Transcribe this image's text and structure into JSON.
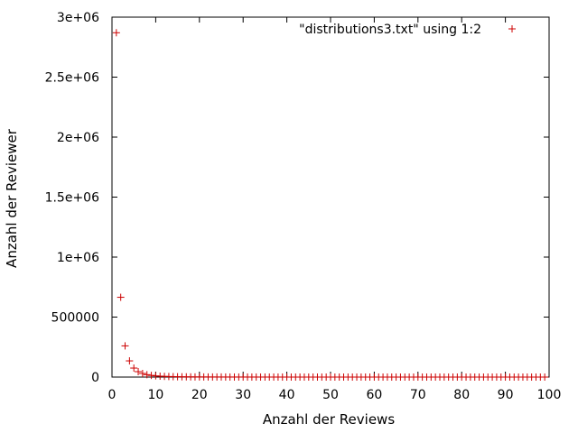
{
  "chart_data": {
    "type": "scatter",
    "xlabel": "Anzahl der Reviews",
    "ylabel": "Anzahl der Reviewer",
    "xlim": [
      0,
      100
    ],
    "ylim": [
      0,
      3000000
    ],
    "x_ticks": [
      0,
      10,
      20,
      30,
      40,
      50,
      60,
      70,
      80,
      90,
      100
    ],
    "x_tick_labels": [
      "0",
      "10",
      "20",
      "30",
      "40",
      "50",
      "60",
      "70",
      "80",
      "90",
      "100"
    ],
    "y_ticks": [
      0,
      500000,
      1000000,
      1500000,
      2000000,
      2500000,
      3000000
    ],
    "y_tick_labels": [
      "0",
      "500000",
      "1e+06",
      "1.5e+06",
      "2e+06",
      "2.5e+06",
      "3e+06"
    ],
    "legend_position": "top-right",
    "grid": false,
    "marker": "plus",
    "series": [
      {
        "name": "\"distributions3.txt\" using 1:2",
        "color": "#cc0000",
        "x": [
          1,
          2,
          3,
          4,
          5,
          6,
          7,
          8,
          9,
          10,
          11,
          12,
          13,
          14,
          15,
          16,
          17,
          18,
          19,
          20,
          21,
          22,
          23,
          24,
          25,
          26,
          27,
          28,
          29,
          30,
          31,
          32,
          33,
          34,
          35,
          36,
          37,
          38,
          39,
          40,
          41,
          42,
          43,
          44,
          45,
          46,
          47,
          48,
          49,
          50,
          51,
          52,
          53,
          54,
          55,
          56,
          57,
          58,
          59,
          60,
          61,
          62,
          63,
          64,
          65,
          66,
          67,
          68,
          69,
          70,
          71,
          72,
          73,
          74,
          75,
          76,
          77,
          78,
          79,
          80,
          81,
          82,
          83,
          84,
          85,
          86,
          87,
          88,
          89,
          90,
          91,
          92,
          93,
          94,
          95,
          96,
          97,
          98,
          99
        ],
        "y": [
          2870000,
          665000,
          260000,
          135000,
          75000,
          45000,
          30000,
          20000,
          14000,
          10000,
          7500,
          5800,
          4500,
          3500,
          2800,
          2300,
          1900,
          1600,
          1300,
          1100,
          950,
          820,
          710,
          620,
          540,
          480,
          420,
          380,
          340,
          300,
          270,
          245,
          220,
          200,
          180,
          165,
          150,
          138,
          127,
          117,
          108,
          100,
          93,
          87,
          81,
          76,
          71,
          66,
          62,
          58,
          55,
          52,
          49,
          46,
          43,
          41,
          39,
          37,
          35,
          33,
          31,
          30,
          28,
          27,
          26,
          25,
          24,
          23,
          22,
          21,
          20,
          19,
          18,
          17,
          17,
          16,
          15,
          15,
          14,
          13,
          13,
          12,
          12,
          11,
          11,
          10,
          10,
          10,
          9,
          9,
          9,
          8,
          8,
          8,
          7,
          7,
          7,
          7,
          6
        ]
      }
    ]
  }
}
